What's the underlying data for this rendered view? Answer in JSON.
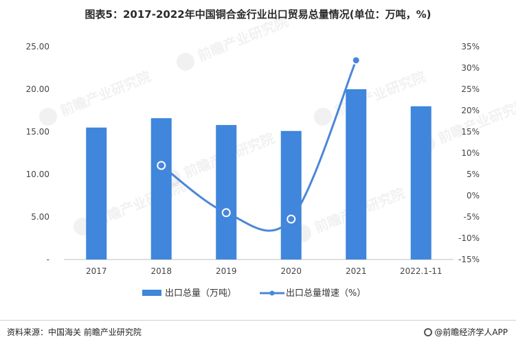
{
  "chart_data": {
    "type": "bar",
    "title": "图表5：2017-2022年中国铜合金行业出口贸易总量情况(单位：万吨，%)",
    "categories": [
      "2017",
      "2018",
      "2019",
      "2020",
      "2021",
      "2022.1-11"
    ],
    "y_left_ticks": [
      "25.00",
      "20.00",
      "15.00",
      "10.00",
      "5.00",
      "-"
    ],
    "ylim_left": [
      0,
      25
    ],
    "y_right_ticks": [
      "35%",
      "30%",
      "25%",
      "20%",
      "15%",
      "10%",
      "5%",
      "0%",
      "-5%",
      "-10%",
      "-15%"
    ],
    "ylim_right": [
      -15,
      35
    ],
    "series": [
      {
        "name": "出口总量（万吨）",
        "type": "bar",
        "axis": "left",
        "color": "#3f86dc",
        "values": [
          15.5,
          16.6,
          15.8,
          15.1,
          20.0,
          18.0
        ]
      },
      {
        "name": "出口总量增速（%）",
        "type": "line",
        "axis": "right",
        "color": "#4a86d8",
        "values": [
          null,
          7.1,
          -4.0,
          -5.5,
          31.8,
          null
        ]
      }
    ],
    "legend": "bottom",
    "grid": false
  },
  "footer": {
    "source": "资料来源：中国海关 前瞻产业研究院",
    "brand": "@前瞻经济学人APP"
  },
  "watermark": {
    "brand": "前瞻产业研究院"
  }
}
